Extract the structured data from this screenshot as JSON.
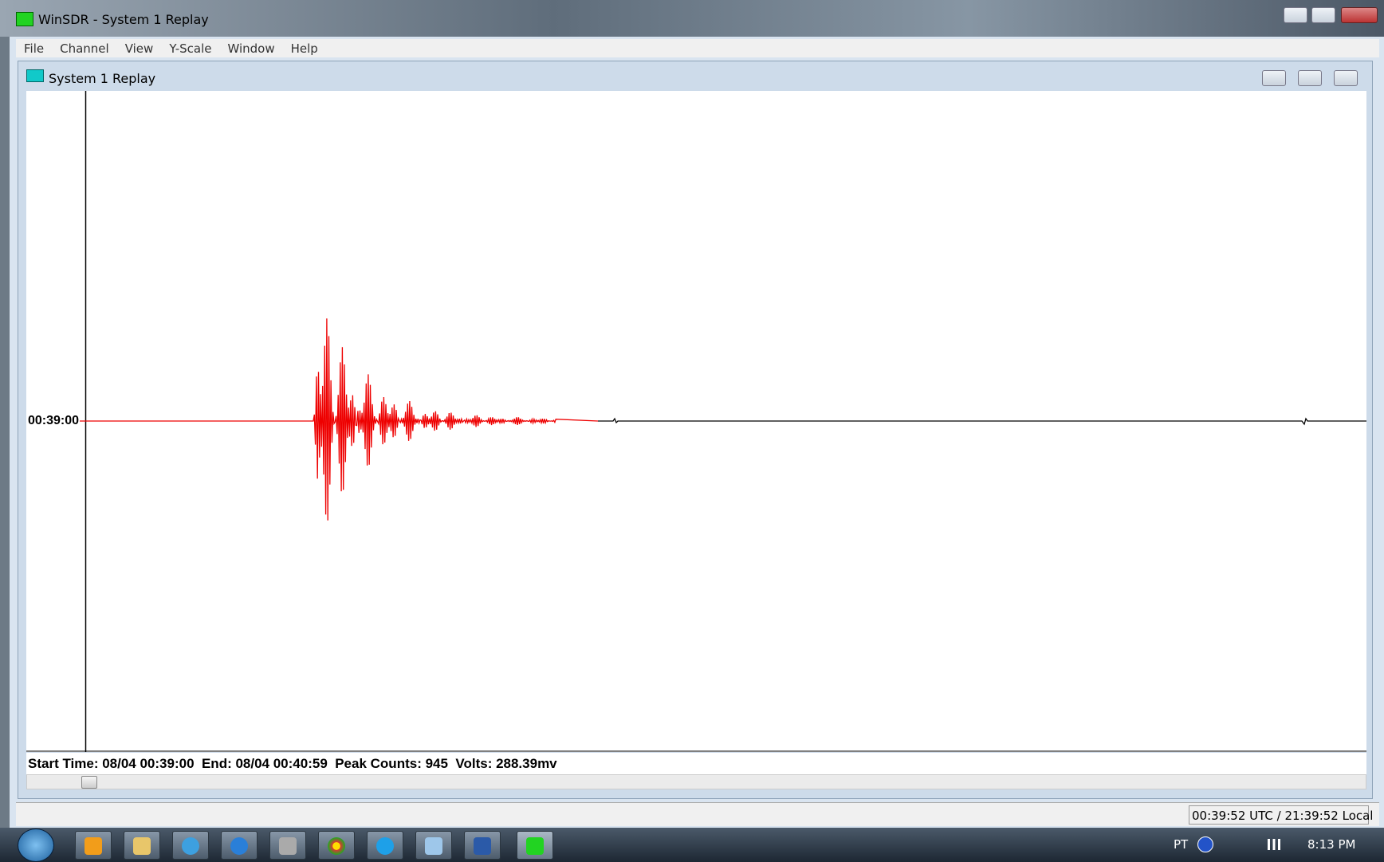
{
  "window": {
    "title": "WinSDR - System 1 Replay"
  },
  "menu": [
    "File",
    "Channel",
    "View",
    "Y-Scale",
    "Window",
    "Help"
  ],
  "child": {
    "title": "System 1 Replay",
    "time_label": "00:39:00",
    "info": "Start Time: 08/04 00:39:00  End: 08/04 00:40:59  Peak Counts: 945  Volts: 288.39mv"
  },
  "status_bar": {
    "clock": "00:39:52 UTC / 21:39:52 Local"
  },
  "taskbar": {
    "language": "PT",
    "time": "8:13 PM"
  }
}
